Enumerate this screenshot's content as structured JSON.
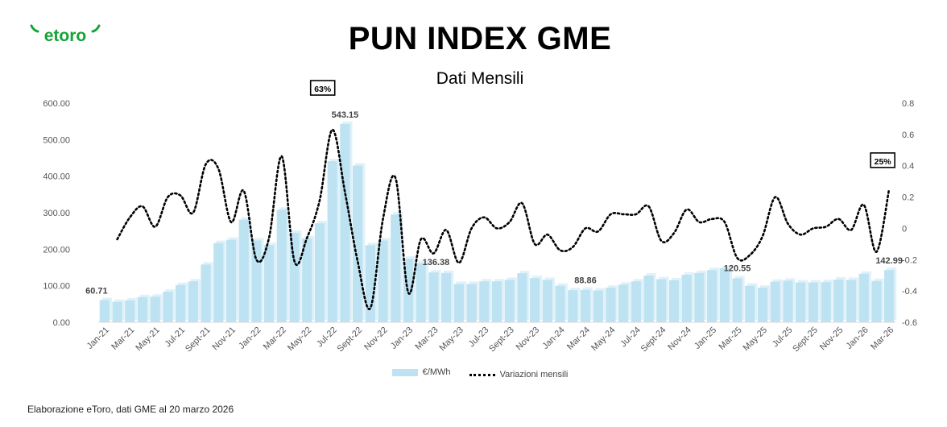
{
  "brand": {
    "logo_text": "etoro",
    "color": "#14a335"
  },
  "header": {
    "title": "PUN INDEX GME",
    "subtitle": "Dati Mensili"
  },
  "footer": {
    "note": "Elaborazione eToro, dati GME al 20 marzo 2026"
  },
  "chart_data": {
    "type": "bar",
    "title": "PUN INDEX GME",
    "subtitle": "Dati Mensili",
    "categories": [
      "Jan-21",
      "Feb-21",
      "Mar-21",
      "Apr-21",
      "May-21",
      "Jun-21",
      "Jul-21",
      "Aug-21",
      "Sept-21",
      "Oct-21",
      "Nov-21",
      "Dec-21",
      "Jan-22",
      "Feb-22",
      "Mar-22",
      "Apr-22",
      "May-22",
      "Jun-22",
      "Jul-22",
      "Aug-22",
      "Sept-22",
      "Oct-22",
      "Nov-22",
      "Dec-22",
      "Jan-23",
      "Feb-23",
      "Mar-23",
      "Apr-23",
      "May-23",
      "Jun-23",
      "Jul-23",
      "Aug-23",
      "Sept-23",
      "Oct-23",
      "Nov-23",
      "Dec-23",
      "Jan-24",
      "Feb-24",
      "Mar-24",
      "Apr-24",
      "May-24",
      "Jun-24",
      "Jul-24",
      "Aug-24",
      "Sept-24",
      "Oct-24",
      "Nov-24",
      "Dec-24",
      "Jan-25",
      "Feb-25",
      "Mar-25",
      "Apr-25",
      "May-25",
      "Jun-25",
      "Jul-25",
      "Aug-25",
      "Sept-25",
      "Oct-25",
      "Nov-25",
      "Dec-25",
      "Jan-26",
      "Feb-26",
      "Mar-26"
    ],
    "x_tick_labels": [
      "Jan-21",
      "Mar-21",
      "May-21",
      "Jul-21",
      "Sept-21",
      "Nov-21",
      "Jan-22",
      "Mar-22",
      "May-22",
      "Jul-22",
      "Sept-22",
      "Nov-22",
      "Jan-23",
      "Mar-23",
      "May-23",
      "Jul-23",
      "Sept-23",
      "Nov-23",
      "Jan-24",
      "Mar-24",
      "May-24",
      "Jul-24",
      "Sept-24",
      "Nov-24",
      "Jan-25",
      "Mar-25",
      "May-25",
      "Jul-25",
      "Sept-25",
      "Nov-25",
      "Jan-26",
      "Mar-26"
    ],
    "series": [
      {
        "name": "€/MWh",
        "type": "bar",
        "axis": "left",
        "color": "#bde3f3",
        "values": [
          60.71,
          56,
          60,
          69,
          70,
          84,
          102,
          112,
          158,
          217,
          226,
          281,
          224,
          211,
          308,
          245,
          230,
          271,
          441,
          543.15,
          429,
          211,
          224,
          295,
          174,
          162,
          136.38,
          135,
          105,
          105,
          112,
          112,
          116,
          134,
          121,
          116,
          100,
          88,
          88.86,
          87,
          95,
          103,
          112,
          128,
          118,
          115,
          130,
          135,
          143,
          148,
          120.55,
          100,
          95,
          111,
          114,
          109,
          109,
          110,
          117,
          116,
          133,
          113,
          142.99
        ]
      },
      {
        "name": "Variazioni mensili",
        "type": "line",
        "axis": "right",
        "color": "#000000",
        "values": [
          null,
          -0.07,
          0.07,
          0.14,
          0.01,
          0.2,
          0.21,
          0.1,
          0.41,
          0.38,
          0.04,
          0.24,
          -0.2,
          -0.06,
          0.46,
          -0.21,
          -0.06,
          0.18,
          0.63,
          0.23,
          -0.21,
          -0.51,
          0.06,
          0.32,
          -0.41,
          -0.07,
          -0.16,
          -0.01,
          -0.22,
          0.0,
          0.07,
          0.0,
          0.04,
          0.16,
          -0.1,
          -0.04,
          -0.14,
          -0.12,
          0.0,
          -0.02,
          0.09,
          0.09,
          0.09,
          0.14,
          -0.08,
          -0.03,
          0.12,
          0.04,
          0.06,
          0.04,
          -0.19,
          -0.17,
          -0.05,
          0.2,
          0.03,
          -0.04,
          0.0,
          0.01,
          0.06,
          -0.01,
          0.15,
          -0.15,
          0.25
        ]
      }
    ],
    "data_labels": [
      {
        "series": "€/MWh",
        "category": "Jan-21",
        "text": "60.71"
      },
      {
        "series": "€/MWh",
        "category": "Aug-22",
        "text": "543.15"
      },
      {
        "series": "€/MWh",
        "category": "Mar-23",
        "text": "136.38"
      },
      {
        "series": "€/MWh",
        "category": "Mar-24",
        "text": "88.86"
      },
      {
        "series": "€/MWh",
        "category": "Mar-25",
        "text": "120.55"
      },
      {
        "series": "€/MWh",
        "category": "Mar-26",
        "text": "142.99"
      },
      {
        "series": "Variazioni mensili",
        "category": "Jul-22",
        "text": "63%"
      },
      {
        "series": "Variazioni mensili",
        "category": "Mar-26",
        "text": "25%"
      }
    ],
    "y_left": {
      "min": 0,
      "max": 600,
      "step": 100,
      "tick_labels": [
        "0.00",
        "100.00",
        "200.00",
        "300.00",
        "400.00",
        "500.00",
        "600.00"
      ]
    },
    "y_right": {
      "min": -0.6,
      "max": 0.8,
      "step": 0.2,
      "tick_labels": [
        "-0.6",
        "-0.4",
        "-0.2",
        "0",
        "0.2",
        "0.4",
        "0.6",
        "0.8"
      ]
    },
    "grid": false,
    "legend": {
      "position": "bottom",
      "entries": [
        "€/MWh",
        "Variazioni mensili"
      ]
    }
  }
}
